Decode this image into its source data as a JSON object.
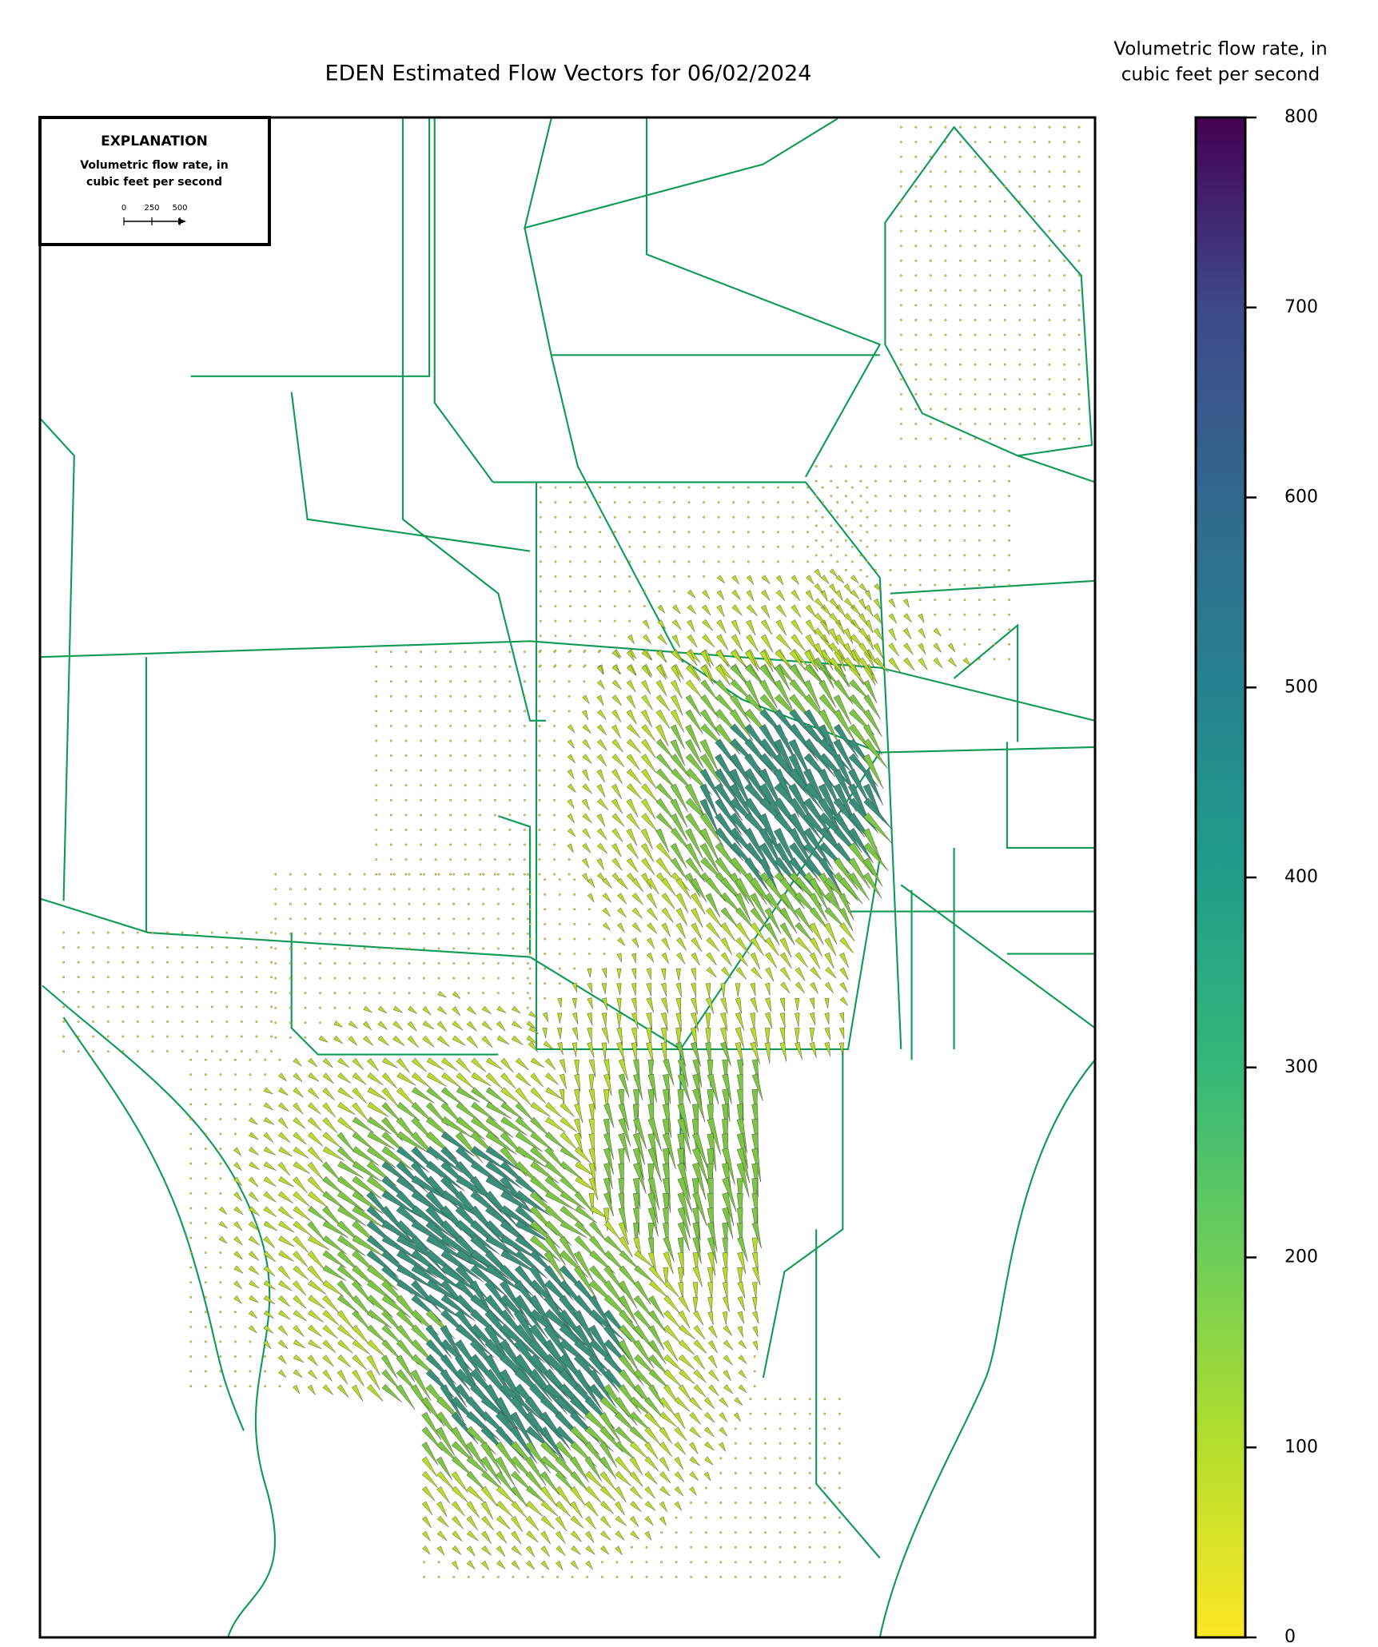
{
  "title": "EDEN Estimated Flow Vectors for 06/02/2024",
  "explanation": {
    "heading": "EXPLANATION",
    "label": [
      "Volumetric flow rate, in",
      "cubic feet per second"
    ],
    "scale_ticks": [
      0,
      250,
      500
    ]
  },
  "colorbar": {
    "label": [
      "Volumetric flow rate, in",
      "cubic feet per second"
    ],
    "range": [
      0,
      800
    ],
    "ticks": [
      0,
      100,
      200,
      300,
      400,
      500,
      600,
      700,
      800
    ]
  }
}
